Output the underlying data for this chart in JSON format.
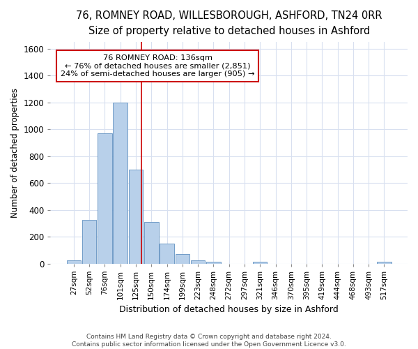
{
  "title_line1": "76, ROMNEY ROAD, WILLESBOROUGH, ASHFORD, TN24 0RR",
  "title_line2": "Size of property relative to detached houses in Ashford",
  "xlabel": "Distribution of detached houses by size in Ashford",
  "ylabel": "Number of detached properties",
  "footer_line1": "Contains HM Land Registry data © Crown copyright and database right 2024.",
  "footer_line2": "Contains public sector information licensed under the Open Government Licence v3.0.",
  "categories": [
    "27sqm",
    "52sqm",
    "76sqm",
    "101sqm",
    "125sqm",
    "150sqm",
    "174sqm",
    "199sqm",
    "223sqm",
    "248sqm",
    "272sqm",
    "297sqm",
    "321sqm",
    "346sqm",
    "370sqm",
    "395sqm",
    "419sqm",
    "444sqm",
    "468sqm",
    "493sqm",
    "517sqm"
  ],
  "values": [
    25,
    325,
    970,
    1200,
    700,
    310,
    150,
    70,
    25,
    15,
    0,
    0,
    15,
    0,
    0,
    0,
    0,
    0,
    0,
    0,
    15
  ],
  "bar_color": "#b8d0ea",
  "bar_edge_color": "#6090c0",
  "red_line_x": 4.36,
  "annotation_text_line1": "76 ROMNEY ROAD: 136sqm",
  "annotation_text_line2": "← 76% of detached houses are smaller (2,851)",
  "annotation_text_line3": "24% of semi-detached houses are larger (905) →",
  "annotation_box_color": "#ffffff",
  "annotation_box_edge": "#cc0000",
  "ylim": [
    0,
    1650
  ],
  "yticks": [
    0,
    200,
    400,
    600,
    800,
    1000,
    1200,
    1400,
    1600
  ],
  "background_color": "#ffffff",
  "grid_color": "#d8e0f0",
  "title1_fontsize": 10.5,
  "title2_fontsize": 9.5
}
